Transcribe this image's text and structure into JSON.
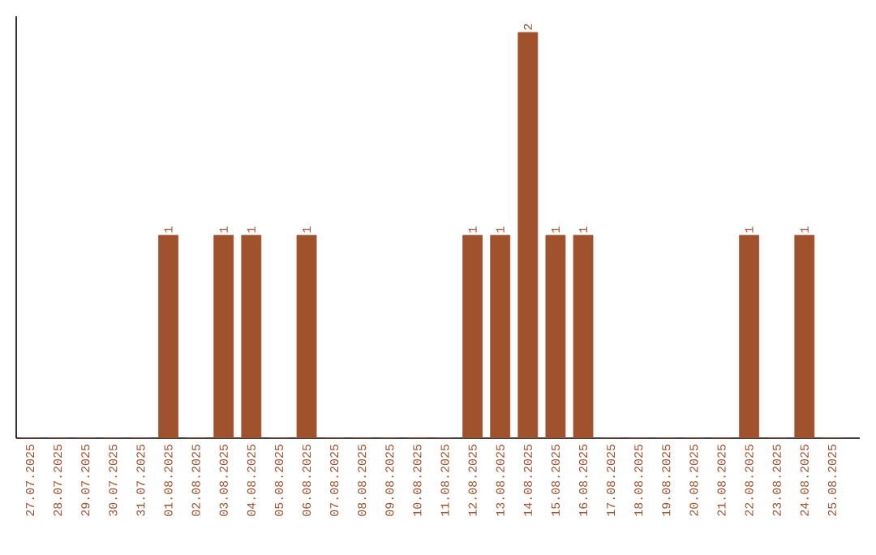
{
  "chart_data": {
    "type": "bar",
    "color": "#a0522d",
    "categories": [
      "27.07.2025",
      "28.07.2025",
      "29.07.2025",
      "30.07.2025",
      "31.07.2025",
      "01.08.2025",
      "02.08.2025",
      "03.08.2025",
      "04.08.2025",
      "05.08.2025",
      "06.08.2025",
      "07.08.2025",
      "08.08.2025",
      "09.08.2025",
      "10.08.2025",
      "11.08.2025",
      "12.08.2025",
      "13.08.2025",
      "14.08.2025",
      "15.08.2025",
      "16.08.2025",
      "17.08.2025",
      "18.08.2025",
      "19.08.2025",
      "20.08.2025",
      "21.08.2025",
      "22.08.2025",
      "23.08.2025",
      "24.08.2025",
      "25.08.2025"
    ],
    "values": [
      0,
      0,
      0,
      0,
      0,
      1,
      0,
      1,
      1,
      0,
      1,
      0,
      0,
      0,
      0,
      0,
      1,
      1,
      2,
      1,
      1,
      0,
      0,
      0,
      0,
      0,
      1,
      0,
      1,
      0
    ],
    "value_labels": [
      null,
      null,
      null,
      null,
      null,
      "1",
      null,
      "1",
      "1",
      null,
      "1",
      null,
      null,
      null,
      null,
      null,
      "1",
      "1",
      "2",
      "1",
      "1",
      null,
      null,
      null,
      null,
      null,
      "1",
      null,
      "1",
      null
    ],
    "data_labels": false
  }
}
